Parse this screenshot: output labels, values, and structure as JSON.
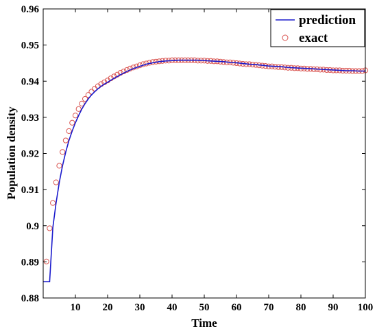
{
  "chart_data": {
    "type": "line",
    "xlabel": "Time",
    "ylabel": "Population density",
    "xlim": [
      0,
      100
    ],
    "ylim": [
      0.88,
      0.96
    ],
    "x_ticks": [
      10,
      20,
      30,
      40,
      50,
      60,
      70,
      80,
      90,
      100
    ],
    "x_tick_labels": [
      "10",
      "20",
      "30",
      "40",
      "50",
      "60",
      "70",
      "80",
      "90",
      "100"
    ],
    "y_ticks": [
      0.88,
      0.89,
      0.9,
      0.91,
      0.92,
      0.93,
      0.94,
      0.95,
      0.96
    ],
    "y_tick_labels": [
      "0.88",
      "0.89",
      "0.9",
      "0.91",
      "0.92",
      "0.93",
      "0.94",
      "0.95",
      "0.96"
    ],
    "grid": false,
    "legend_position": "top-right",
    "colors": {
      "prediction": "#1a1acc",
      "exact": "#d9534f"
    },
    "series": [
      {
        "name": "prediction",
        "style": "line",
        "x": [
          0,
          1,
          2,
          3,
          4,
          5,
          6,
          7,
          8,
          9,
          10,
          11,
          12,
          13,
          14,
          15,
          16,
          17,
          18,
          19,
          20,
          22,
          24,
          26,
          28,
          30,
          32,
          34,
          36,
          38,
          40,
          42,
          44,
          46,
          48,
          50,
          52,
          54,
          56,
          58,
          60,
          62,
          64,
          66,
          68,
          70,
          72,
          74,
          76,
          78,
          80,
          82,
          84,
          86,
          88,
          90,
          92,
          94,
          96,
          98,
          100
        ],
        "y": [
          0.8845,
          0.8845,
          0.8845,
          0.8995,
          0.9063,
          0.912,
          0.9166,
          0.9204,
          0.9236,
          0.9262,
          0.9285,
          0.9305,
          0.9323,
          0.9338,
          0.9351,
          0.9362,
          0.9371,
          0.9379,
          0.9386,
          0.9392,
          0.9397,
          0.9408,
          0.9418,
          0.9427,
          0.9435,
          0.9441,
          0.9447,
          0.9451,
          0.9454,
          0.9456,
          0.9457,
          0.9458,
          0.9458,
          0.9458,
          0.9458,
          0.9457,
          0.9456,
          0.9455,
          0.9454,
          0.9452,
          0.9451,
          0.9449,
          0.9447,
          0.9446,
          0.9444,
          0.9442,
          0.9441,
          0.944,
          0.9438,
          0.9437,
          0.9436,
          0.9435,
          0.9434,
          0.9433,
          0.9432,
          0.9431,
          0.943,
          0.9429,
          0.9429,
          0.9428,
          0.9428
        ]
      },
      {
        "name": "exact",
        "style": "markers",
        "x": [
          1,
          2,
          3,
          4,
          5,
          6,
          7,
          8,
          9,
          10,
          11,
          12,
          13,
          14,
          15,
          16,
          17,
          18,
          19,
          20,
          21,
          22,
          23,
          24,
          25,
          26,
          27,
          28,
          29,
          30,
          31,
          32,
          33,
          34,
          35,
          36,
          37,
          38,
          39,
          40,
          41,
          42,
          43,
          44,
          45,
          46,
          47,
          48,
          49,
          50,
          51,
          52,
          53,
          54,
          55,
          56,
          57,
          58,
          59,
          60,
          61,
          62,
          63,
          64,
          65,
          66,
          67,
          68,
          69,
          70,
          71,
          72,
          73,
          74,
          75,
          76,
          77,
          78,
          79,
          80,
          81,
          82,
          83,
          84,
          85,
          86,
          87,
          88,
          89,
          90,
          91,
          92,
          93,
          94,
          95,
          96,
          97,
          98,
          99,
          100
        ],
        "y": [
          0.8901,
          0.8993,
          0.9063,
          0.912,
          0.9166,
          0.9204,
          0.9236,
          0.9262,
          0.9285,
          0.9305,
          0.9323,
          0.9338,
          0.9351,
          0.9362,
          0.9371,
          0.9379,
          0.9386,
          0.9392,
          0.9397,
          0.9402,
          0.9408,
          0.9413,
          0.9418,
          0.9423,
          0.9427,
          0.9431,
          0.9435,
          0.9438,
          0.9441,
          0.9444,
          0.9447,
          0.9449,
          0.9451,
          0.9453,
          0.9454,
          0.9455,
          0.9456,
          0.9457,
          0.9457,
          0.9458,
          0.9458,
          0.9458,
          0.9458,
          0.9458,
          0.9458,
          0.9458,
          0.9458,
          0.9457,
          0.9457,
          0.9457,
          0.9456,
          0.9456,
          0.9455,
          0.9455,
          0.9454,
          0.9453,
          0.9452,
          0.9452,
          0.9451,
          0.945,
          0.9449,
          0.9448,
          0.9447,
          0.9447,
          0.9446,
          0.9445,
          0.9444,
          0.9443,
          0.9442,
          0.9441,
          0.9441,
          0.944,
          0.9439,
          0.9439,
          0.9438,
          0.9437,
          0.9437,
          0.9436,
          0.9436,
          0.9435,
          0.9435,
          0.9434,
          0.9434,
          0.9433,
          0.9433,
          0.9432,
          0.9432,
          0.9431,
          0.9431,
          0.943,
          0.943,
          0.943,
          0.9429,
          0.9429,
          0.9429,
          0.9428,
          0.9428,
          0.9428,
          0.9428,
          0.943
        ]
      }
    ]
  }
}
